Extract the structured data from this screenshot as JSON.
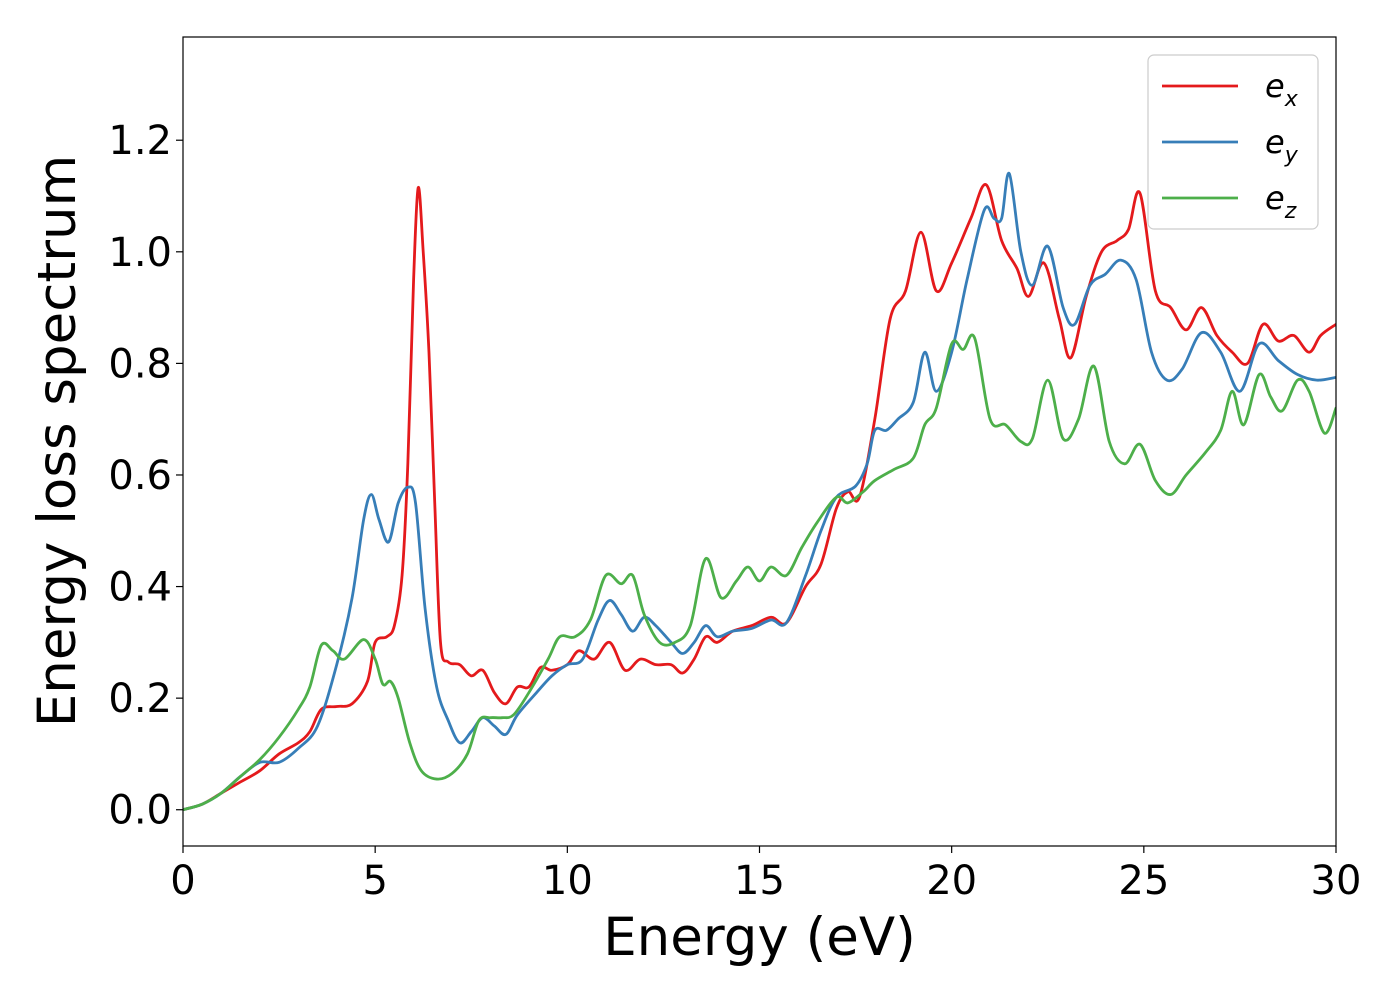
{
  "chart_data": {
    "type": "line",
    "xlabel": "Energy (eV)",
    "ylabel": "Energy loss spectrum",
    "xlim": [
      0,
      30
    ],
    "ylim": [
      -0.065,
      1.385
    ],
    "xticks": [
      0,
      5,
      10,
      15,
      20,
      25,
      30
    ],
    "xtick_labels": [
      "0",
      "5",
      "10",
      "15",
      "20",
      "25",
      "30"
    ],
    "yticks": [
      0.0,
      0.2,
      0.4,
      0.6,
      0.8,
      1.0,
      1.2
    ],
    "ytick_labels": [
      "0.0",
      "0.2",
      "0.4",
      "0.6",
      "0.8",
      "1.0",
      "1.2"
    ],
    "grid": false,
    "legend_position": "top-right",
    "series": [
      {
        "name": "e_x",
        "label_base": "e",
        "label_sub": "x",
        "color": "#e41a1c",
        "points": [
          [
            0,
            0
          ],
          [
            0.5,
            0.01
          ],
          [
            1,
            0.03
          ],
          [
            1.5,
            0.05
          ],
          [
            2,
            0.07
          ],
          [
            2.5,
            0.1
          ],
          [
            3,
            0.12
          ],
          [
            3.3,
            0.14
          ],
          [
            3.6,
            0.18
          ],
          [
            4,
            0.185
          ],
          [
            4.4,
            0.19
          ],
          [
            4.8,
            0.23
          ],
          [
            5,
            0.3
          ],
          [
            5.3,
            0.31
          ],
          [
            5.5,
            0.33
          ],
          [
            5.7,
            0.42
          ],
          [
            5.85,
            0.62
          ],
          [
            6,
            0.95
          ],
          [
            6.12,
            1.115
          ],
          [
            6.25,
            1.0
          ],
          [
            6.4,
            0.82
          ],
          [
            6.55,
            0.55
          ],
          [
            6.7,
            0.3
          ],
          [
            6.9,
            0.265
          ],
          [
            7.2,
            0.26
          ],
          [
            7.5,
            0.24
          ],
          [
            7.8,
            0.25
          ],
          [
            8.1,
            0.21
          ],
          [
            8.4,
            0.19
          ],
          [
            8.7,
            0.22
          ],
          [
            9,
            0.22
          ],
          [
            9.3,
            0.255
          ],
          [
            9.6,
            0.25
          ],
          [
            10,
            0.26
          ],
          [
            10.3,
            0.285
          ],
          [
            10.7,
            0.27
          ],
          [
            11.1,
            0.3
          ],
          [
            11.5,
            0.25
          ],
          [
            11.9,
            0.27
          ],
          [
            12.3,
            0.26
          ],
          [
            12.7,
            0.26
          ],
          [
            13,
            0.245
          ],
          [
            13.3,
            0.27
          ],
          [
            13.6,
            0.31
          ],
          [
            13.9,
            0.3
          ],
          [
            14.3,
            0.32
          ],
          [
            14.8,
            0.33
          ],
          [
            15.3,
            0.345
          ],
          [
            15.7,
            0.335
          ],
          [
            16.2,
            0.4
          ],
          [
            16.6,
            0.44
          ],
          [
            17,
            0.54
          ],
          [
            17.3,
            0.57
          ],
          [
            17.6,
            0.56
          ],
          [
            18,
            0.7
          ],
          [
            18.4,
            0.88
          ],
          [
            18.8,
            0.93
          ],
          [
            19.2,
            1.035
          ],
          [
            19.6,
            0.93
          ],
          [
            20,
            0.98
          ],
          [
            20.5,
            1.06
          ],
          [
            20.9,
            1.12
          ],
          [
            21.3,
            1.02
          ],
          [
            21.7,
            0.97
          ],
          [
            22,
            0.92
          ],
          [
            22.4,
            0.98
          ],
          [
            22.8,
            0.88
          ],
          [
            23.1,
            0.81
          ],
          [
            23.5,
            0.92
          ],
          [
            23.9,
            1.0
          ],
          [
            24.3,
            1.02
          ],
          [
            24.6,
            1.04
          ],
          [
            24.9,
            1.105
          ],
          [
            25.3,
            0.93
          ],
          [
            25.7,
            0.9
          ],
          [
            26.1,
            0.86
          ],
          [
            26.5,
            0.9
          ],
          [
            26.9,
            0.85
          ],
          [
            27.3,
            0.82
          ],
          [
            27.7,
            0.8
          ],
          [
            28.1,
            0.87
          ],
          [
            28.5,
            0.84
          ],
          [
            28.9,
            0.85
          ],
          [
            29.3,
            0.82
          ],
          [
            29.6,
            0.85
          ],
          [
            30,
            0.87
          ]
        ]
      },
      {
        "name": "e_y",
        "label_base": "e",
        "label_sub": "y",
        "color": "#377eb8",
        "points": [
          [
            0,
            0
          ],
          [
            0.5,
            0.01
          ],
          [
            1,
            0.03
          ],
          [
            1.5,
            0.06
          ],
          [
            2,
            0.085
          ],
          [
            2.5,
            0.085
          ],
          [
            3,
            0.11
          ],
          [
            3.5,
            0.15
          ],
          [
            4,
            0.26
          ],
          [
            4.4,
            0.38
          ],
          [
            4.7,
            0.52
          ],
          [
            4.9,
            0.565
          ],
          [
            5.1,
            0.52
          ],
          [
            5.35,
            0.48
          ],
          [
            5.6,
            0.55
          ],
          [
            5.85,
            0.578
          ],
          [
            6.05,
            0.55
          ],
          [
            6.3,
            0.36
          ],
          [
            6.6,
            0.22
          ],
          [
            6.9,
            0.16
          ],
          [
            7.2,
            0.12
          ],
          [
            7.5,
            0.14
          ],
          [
            7.8,
            0.165
          ],
          [
            8.1,
            0.15
          ],
          [
            8.4,
            0.135
          ],
          [
            8.7,
            0.17
          ],
          [
            9.2,
            0.21
          ],
          [
            9.6,
            0.24
          ],
          [
            10,
            0.26
          ],
          [
            10.4,
            0.27
          ],
          [
            10.8,
            0.34
          ],
          [
            11.1,
            0.375
          ],
          [
            11.4,
            0.35
          ],
          [
            11.7,
            0.32
          ],
          [
            12,
            0.345
          ],
          [
            12.3,
            0.33
          ],
          [
            12.7,
            0.3
          ],
          [
            13,
            0.28
          ],
          [
            13.3,
            0.3
          ],
          [
            13.6,
            0.33
          ],
          [
            13.9,
            0.31
          ],
          [
            14.3,
            0.32
          ],
          [
            14.8,
            0.325
          ],
          [
            15.3,
            0.34
          ],
          [
            15.7,
            0.335
          ],
          [
            16.2,
            0.42
          ],
          [
            16.6,
            0.5
          ],
          [
            17,
            0.56
          ],
          [
            17.5,
            0.58
          ],
          [
            17.8,
            0.62
          ],
          [
            18,
            0.68
          ],
          [
            18.3,
            0.68
          ],
          [
            18.6,
            0.7
          ],
          [
            19,
            0.73
          ],
          [
            19.3,
            0.82
          ],
          [
            19.6,
            0.75
          ],
          [
            20,
            0.82
          ],
          [
            20.4,
            0.95
          ],
          [
            20.85,
            1.075
          ],
          [
            21.1,
            1.06
          ],
          [
            21.3,
            1.06
          ],
          [
            21.5,
            1.14
          ],
          [
            21.8,
            1.0
          ],
          [
            22.1,
            0.94
          ],
          [
            22.5,
            1.01
          ],
          [
            22.9,
            0.9
          ],
          [
            23.2,
            0.87
          ],
          [
            23.6,
            0.94
          ],
          [
            24,
            0.96
          ],
          [
            24.4,
            0.985
          ],
          [
            24.8,
            0.95
          ],
          [
            25.2,
            0.82
          ],
          [
            25.6,
            0.77
          ],
          [
            26,
            0.79
          ],
          [
            26.5,
            0.855
          ],
          [
            27,
            0.82
          ],
          [
            27.5,
            0.75
          ],
          [
            28,
            0.835
          ],
          [
            28.5,
            0.805
          ],
          [
            29,
            0.78
          ],
          [
            29.5,
            0.77
          ],
          [
            30,
            0.775
          ]
        ]
      },
      {
        "name": "e_z",
        "label_base": "e",
        "label_sub": "z",
        "color": "#4daf4a",
        "points": [
          [
            0,
            0
          ],
          [
            0.5,
            0.01
          ],
          [
            1,
            0.03
          ],
          [
            1.5,
            0.06
          ],
          [
            2,
            0.09
          ],
          [
            2.5,
            0.13
          ],
          [
            3,
            0.18
          ],
          [
            3.3,
            0.22
          ],
          [
            3.6,
            0.295
          ],
          [
            3.9,
            0.285
          ],
          [
            4.2,
            0.27
          ],
          [
            4.7,
            0.305
          ],
          [
            5,
            0.27
          ],
          [
            5.2,
            0.225
          ],
          [
            5.4,
            0.23
          ],
          [
            5.6,
            0.2
          ],
          [
            5.9,
            0.12
          ],
          [
            6.2,
            0.07
          ],
          [
            6.6,
            0.055
          ],
          [
            7,
            0.065
          ],
          [
            7.4,
            0.1
          ],
          [
            7.7,
            0.16
          ],
          [
            8,
            0.165
          ],
          [
            8.3,
            0.165
          ],
          [
            8.6,
            0.17
          ],
          [
            9,
            0.21
          ],
          [
            9.5,
            0.27
          ],
          [
            9.8,
            0.31
          ],
          [
            10.2,
            0.31
          ],
          [
            10.6,
            0.34
          ],
          [
            11,
            0.42
          ],
          [
            11.4,
            0.405
          ],
          [
            11.7,
            0.42
          ],
          [
            12,
            0.35
          ],
          [
            12.4,
            0.3
          ],
          [
            12.8,
            0.3
          ],
          [
            13.2,
            0.33
          ],
          [
            13.6,
            0.45
          ],
          [
            14,
            0.38
          ],
          [
            14.4,
            0.41
          ],
          [
            14.7,
            0.435
          ],
          [
            15,
            0.41
          ],
          [
            15.3,
            0.435
          ],
          [
            15.7,
            0.42
          ],
          [
            16.1,
            0.47
          ],
          [
            16.5,
            0.515
          ],
          [
            17,
            0.56
          ],
          [
            17.3,
            0.55
          ],
          [
            17.7,
            0.57
          ],
          [
            18,
            0.59
          ],
          [
            18.5,
            0.61
          ],
          [
            19,
            0.63
          ],
          [
            19.3,
            0.69
          ],
          [
            19.6,
            0.72
          ],
          [
            20,
            0.835
          ],
          [
            20.3,
            0.825
          ],
          [
            20.6,
            0.845
          ],
          [
            21,
            0.7
          ],
          [
            21.4,
            0.69
          ],
          [
            21.8,
            0.66
          ],
          [
            22.1,
            0.665
          ],
          [
            22.5,
            0.77
          ],
          [
            22.9,
            0.665
          ],
          [
            23.3,
            0.7
          ],
          [
            23.7,
            0.795
          ],
          [
            24.1,
            0.66
          ],
          [
            24.5,
            0.62
          ],
          [
            24.9,
            0.655
          ],
          [
            25.3,
            0.59
          ],
          [
            25.7,
            0.565
          ],
          [
            26.1,
            0.6
          ],
          [
            26.6,
            0.64
          ],
          [
            27,
            0.68
          ],
          [
            27.3,
            0.75
          ],
          [
            27.6,
            0.69
          ],
          [
            28,
            0.78
          ],
          [
            28.3,
            0.74
          ],
          [
            28.6,
            0.715
          ],
          [
            29,
            0.77
          ],
          [
            29.3,
            0.75
          ],
          [
            29.7,
            0.675
          ],
          [
            30,
            0.72
          ]
        ]
      }
    ]
  }
}
